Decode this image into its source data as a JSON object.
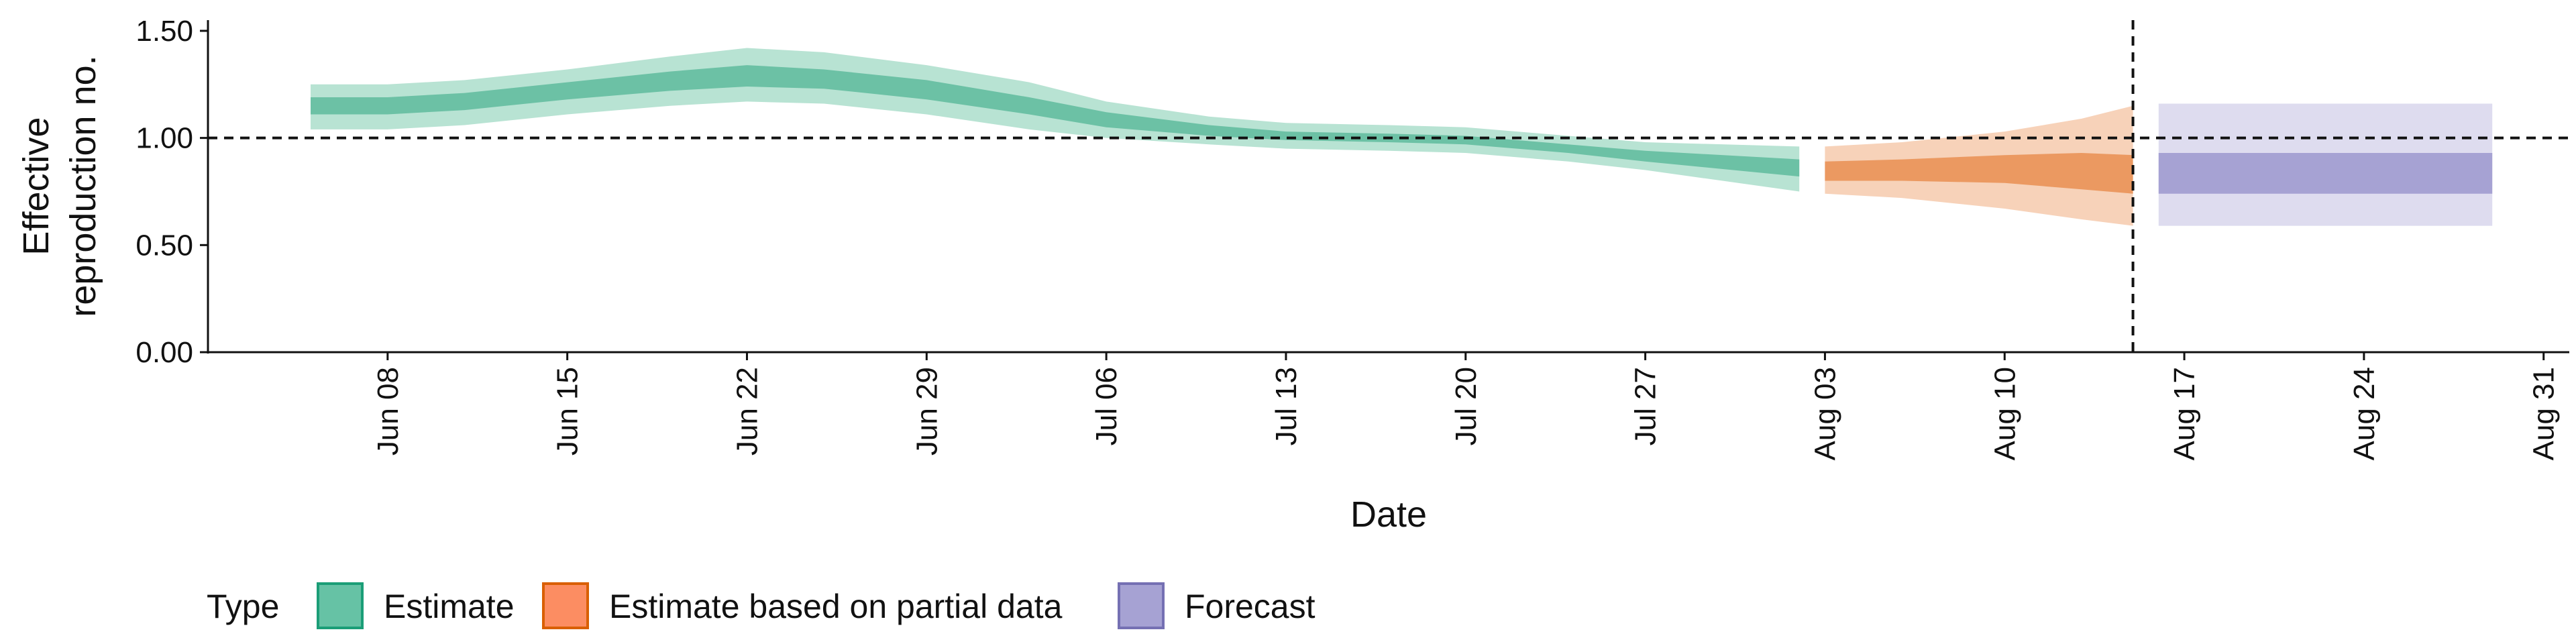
{
  "chart_data": {
    "type": "area",
    "title": "",
    "xlabel": "Date",
    "ylabel": "Effective reproduction no.",
    "ylabel_lines": [
      "Effective",
      "reproduction no."
    ],
    "xlim": [
      "2020-06-01",
      "2020-09-01"
    ],
    "ylim": [
      0,
      1.55
    ],
    "x_tick_labels": [
      {
        "date": "2020-06-08",
        "label": "Jun 08"
      },
      {
        "date": "2020-06-15",
        "label": "Jun 15"
      },
      {
        "date": "2020-06-22",
        "label": "Jun 22"
      },
      {
        "date": "2020-06-29",
        "label": "Jun 29"
      },
      {
        "date": "2020-07-06",
        "label": "Jul 06"
      },
      {
        "date": "2020-07-13",
        "label": "Jul 13"
      },
      {
        "date": "2020-07-20",
        "label": "Jul 20"
      },
      {
        "date": "2020-07-27",
        "label": "Jul 27"
      },
      {
        "date": "2020-08-03",
        "label": "Aug 03"
      },
      {
        "date": "2020-08-10",
        "label": "Aug 10"
      },
      {
        "date": "2020-08-17",
        "label": "Aug 17"
      },
      {
        "date": "2020-08-24",
        "label": "Aug 24"
      },
      {
        "date": "2020-08-31",
        "label": "Aug 31"
      }
    ],
    "y_ticks": [
      0.0,
      0.5,
      1.0,
      1.5
    ],
    "y_tick_labels": [
      "0.00",
      "0.50",
      "1.00",
      "1.50"
    ],
    "reference_line_y": 1.0,
    "vertical_line_x": "2020-08-15",
    "grid": false,
    "legend": {
      "title": "Type",
      "position": "bottom-left",
      "entries": [
        {
          "label": "Estimate",
          "fill": "#66c2a5",
          "stroke": "#1b9e77"
        },
        {
          "label": "Estimate based on partial data",
          "fill": "#fc8d62",
          "stroke": "#d95f02"
        },
        {
          "label": "Forecast",
          "fill": "#a6a2d3",
          "stroke": "#7570b3"
        }
      ]
    },
    "colors": {
      "estimate_outer": "#b8e3d3",
      "estimate_inner": "#6cc1a5",
      "partial_outer": "#f7d2b9",
      "partial_inner": "#eb9961",
      "forecast_outer": "#dedcef",
      "forecast_inner": "#a6a2d3"
    },
    "series": [
      {
        "name": "Estimate",
        "type": "ribbon",
        "points": [
          {
            "date": "2020-06-05",
            "lower90": 1.04,
            "lower50": 1.11,
            "upper50": 1.19,
            "upper90": 1.25
          },
          {
            "date": "2020-06-08",
            "lower90": 1.04,
            "lower50": 1.11,
            "upper50": 1.19,
            "upper90": 1.25
          },
          {
            "date": "2020-06-11",
            "lower90": 1.06,
            "lower50": 1.13,
            "upper50": 1.21,
            "upper90": 1.27
          },
          {
            "date": "2020-06-15",
            "lower90": 1.11,
            "lower50": 1.18,
            "upper50": 1.26,
            "upper90": 1.32
          },
          {
            "date": "2020-06-19",
            "lower90": 1.15,
            "lower50": 1.22,
            "upper50": 1.31,
            "upper90": 1.38
          },
          {
            "date": "2020-06-22",
            "lower90": 1.17,
            "lower50": 1.24,
            "upper50": 1.34,
            "upper90": 1.42
          },
          {
            "date": "2020-06-25",
            "lower90": 1.16,
            "lower50": 1.23,
            "upper50": 1.32,
            "upper90": 1.4
          },
          {
            "date": "2020-06-29",
            "lower90": 1.11,
            "lower50": 1.18,
            "upper50": 1.27,
            "upper90": 1.34
          },
          {
            "date": "2020-07-03",
            "lower90": 1.04,
            "lower50": 1.11,
            "upper50": 1.19,
            "upper90": 1.26
          },
          {
            "date": "2020-07-06",
            "lower90": 1.0,
            "lower50": 1.05,
            "upper50": 1.12,
            "upper90": 1.17
          },
          {
            "date": "2020-07-10",
            "lower90": 0.97,
            "lower50": 1.01,
            "upper50": 1.06,
            "upper90": 1.1
          },
          {
            "date": "2020-07-13",
            "lower90": 0.95,
            "lower50": 0.99,
            "upper50": 1.03,
            "upper90": 1.07
          },
          {
            "date": "2020-07-17",
            "lower90": 0.94,
            "lower50": 0.98,
            "upper50": 1.02,
            "upper90": 1.06
          },
          {
            "date": "2020-07-20",
            "lower90": 0.93,
            "lower50": 0.97,
            "upper50": 1.01,
            "upper90": 1.05
          },
          {
            "date": "2020-07-24",
            "lower90": 0.89,
            "lower50": 0.93,
            "upper50": 0.97,
            "upper90": 1.01
          },
          {
            "date": "2020-07-27",
            "lower90": 0.85,
            "lower50": 0.89,
            "upper50": 0.94,
            "upper90": 0.98
          },
          {
            "date": "2020-08-02",
            "lower90": 0.75,
            "lower50": 0.82,
            "upper50": 0.9,
            "upper90": 0.96
          }
        ]
      },
      {
        "name": "Estimate based on partial data",
        "type": "ribbon",
        "points": [
          {
            "date": "2020-08-03",
            "lower90": 0.74,
            "lower50": 0.8,
            "upper50": 0.89,
            "upper90": 0.96
          },
          {
            "date": "2020-08-06",
            "lower90": 0.72,
            "lower50": 0.8,
            "upper50": 0.9,
            "upper90": 0.98
          },
          {
            "date": "2020-08-10",
            "lower90": 0.67,
            "lower50": 0.79,
            "upper50": 0.92,
            "upper90": 1.03
          },
          {
            "date": "2020-08-13",
            "lower90": 0.62,
            "lower50": 0.76,
            "upper50": 0.93,
            "upper90": 1.09
          },
          {
            "date": "2020-08-15",
            "lower90": 0.59,
            "lower50": 0.74,
            "upper50": 0.92,
            "upper90": 1.15
          }
        ]
      },
      {
        "name": "Forecast",
        "type": "ribbon",
        "points": [
          {
            "date": "2020-08-16",
            "lower90": 0.59,
            "lower50": 0.74,
            "upper50": 0.93,
            "upper90": 1.16
          },
          {
            "date": "2020-08-29",
            "lower90": 0.59,
            "lower50": 0.74,
            "upper50": 0.93,
            "upper90": 1.16
          }
        ]
      }
    ]
  }
}
